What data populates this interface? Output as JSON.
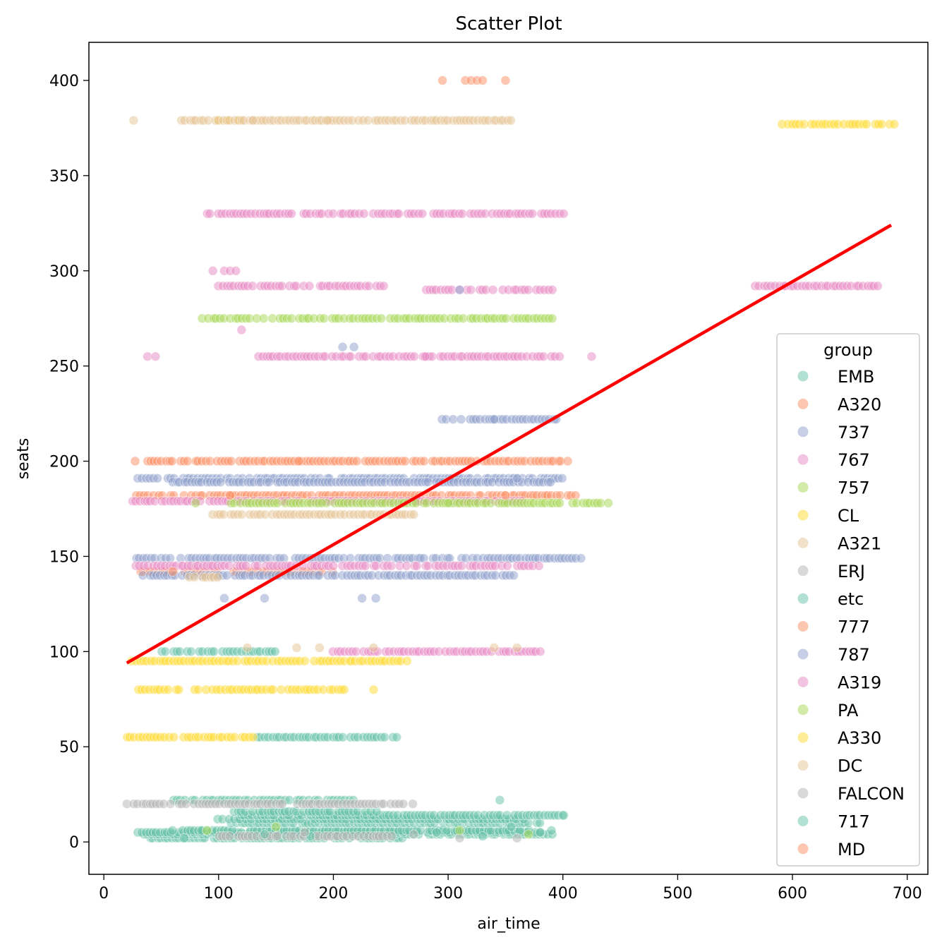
{
  "chart_data": {
    "type": "scatter",
    "title": "Scatter Plot",
    "xlabel": "air_time",
    "ylabel": "seats",
    "xlim": [
      -13,
      718
    ],
    "ylim": [
      -17,
      420
    ],
    "xticks": [
      0,
      100,
      200,
      300,
      400,
      500,
      600,
      700
    ],
    "yticks": [
      0,
      50,
      100,
      150,
      200,
      250,
      300,
      350,
      400
    ],
    "grid": false,
    "legend": {
      "title": "group",
      "placement": "lower-right"
    },
    "point_opacity": 0.5,
    "series": [
      {
        "name": "EMB",
        "color": "#66c2a5",
        "segments": [
          {
            "seats": 2,
            "x_from": 40,
            "x_to": 260
          },
          {
            "seats": 4,
            "x_from": 35,
            "x_to": 390
          },
          {
            "seats": 5,
            "x_from": 30,
            "x_to": 380
          },
          {
            "seats": 6,
            "x_from": 60,
            "x_to": 370
          },
          {
            "seats": 10,
            "x_from": 110,
            "x_to": 380
          },
          {
            "seats": 12,
            "x_from": 100,
            "x_to": 370
          },
          {
            "seats": 14,
            "x_from": 120,
            "x_to": 400
          },
          {
            "seats": 16,
            "x_from": 110,
            "x_to": 240
          },
          {
            "seats": 22,
            "x_from": 60,
            "x_to": 220
          },
          {
            "seats": 55,
            "x_from": 130,
            "x_to": 255
          },
          {
            "seats": 100,
            "x_from": 50,
            "x_to": 150
          }
        ],
        "points": [
          [
            345,
            22
          ],
          [
            400,
            14
          ],
          [
            380,
            5
          ]
        ]
      },
      {
        "name": "A320",
        "color": "#fc8d62",
        "segments": [
          {
            "seats": 200,
            "x_from": 28,
            "x_to": 405
          },
          {
            "seats": 182,
            "x_from": 28,
            "x_to": 410
          },
          {
            "seats": 142,
            "x_from": 28,
            "x_to": 200
          }
        ],
        "points": [
          [
            295,
            400
          ],
          [
            315,
            400
          ],
          [
            320,
            400
          ],
          [
            325,
            400
          ],
          [
            350,
            400
          ]
        ]
      },
      {
        "name": "737",
        "color": "#8da0cb",
        "segments": [
          {
            "seats": 222,
            "x_from": 295,
            "x_to": 395
          },
          {
            "seats": 191,
            "x_from": 30,
            "x_to": 400
          },
          {
            "seats": 189,
            "x_from": 60,
            "x_to": 390
          },
          {
            "seats": 149,
            "x_from": 28,
            "x_to": 415
          },
          {
            "seats": 140,
            "x_from": 30,
            "x_to": 360
          }
        ],
        "points": [
          [
            105,
            128
          ],
          [
            140,
            128
          ],
          [
            225,
            128
          ],
          [
            237,
            128
          ],
          [
            208,
            260
          ],
          [
            218,
            260
          ]
        ]
      },
      {
        "name": "767",
        "color": "#e78ac3",
        "segments": [
          {
            "seats": 330,
            "x_from": 90,
            "x_to": 400
          },
          {
            "seats": 292,
            "x_from": 100,
            "x_to": 250
          },
          {
            "seats": 290,
            "x_from": 280,
            "x_to": 390
          },
          {
            "seats": 255,
            "x_from": 135,
            "x_to": 400
          },
          {
            "seats": 179,
            "x_from": 22,
            "x_to": 370
          },
          {
            "seats": 100,
            "x_from": 200,
            "x_to": 380
          }
        ],
        "points": [
          [
            95,
            300
          ],
          [
            105,
            300
          ],
          [
            110,
            300
          ],
          [
            115,
            300
          ],
          [
            120,
            269
          ],
          [
            280,
            255
          ],
          [
            425,
            255
          ],
          [
            38,
            255
          ],
          [
            45,
            255
          ]
        ]
      },
      {
        "name": "757",
        "color": "#a6d854",
        "segments": [
          {
            "seats": 275,
            "x_from": 85,
            "x_to": 390
          },
          {
            "seats": 178,
            "x_from": 110,
            "x_to": 440
          }
        ],
        "points": [
          [
            80,
            178
          ],
          [
            190,
            178
          ],
          [
            300,
            178
          ]
        ]
      },
      {
        "name": "CL",
        "color": "#ffd92f",
        "segments": [
          {
            "seats": 95,
            "x_from": 25,
            "x_to": 265
          },
          {
            "seats": 80,
            "x_from": 30,
            "x_to": 210
          },
          {
            "seats": 55,
            "x_from": 20,
            "x_to": 130
          }
        ],
        "points": [
          [
            235,
            80
          ],
          [
            100,
            379
          ],
          [
            108,
            379
          ],
          [
            118,
            379
          ]
        ]
      },
      {
        "name": "A321",
        "color": "#e5c494",
        "segments": [
          {
            "seats": 379,
            "x_from": 68,
            "x_to": 355
          },
          {
            "seats": 172,
            "x_from": 95,
            "x_to": 270
          },
          {
            "seats": 139,
            "x_from": 75,
            "x_to": 100
          }
        ],
        "points": [
          [
            26,
            379
          ],
          [
            125,
            102
          ],
          [
            168,
            102
          ],
          [
            188,
            102
          ],
          [
            235,
            102
          ],
          [
            340,
            102
          ],
          [
            360,
            102
          ]
        ]
      },
      {
        "name": "ERJ",
        "color": "#b3b3b3",
        "segments": [
          {
            "seats": 20,
            "x_from": 20,
            "x_to": 270
          },
          {
            "seats": 3,
            "x_from": 100,
            "x_to": 250
          }
        ],
        "points": [
          [
            310,
            2
          ],
          [
            360,
            2
          ]
        ]
      },
      {
        "name": "etc",
        "color": "#66c2a5",
        "segments": [],
        "points": [
          [
            70,
            2
          ],
          [
            85,
            6
          ],
          [
            140,
            4
          ],
          [
            180,
            3
          ]
        ]
      },
      {
        "name": "777",
        "color": "#fc8d62",
        "segments": [],
        "points": [
          [
            330,
            400
          ],
          [
            320,
            200
          ],
          [
            350,
            182
          ]
        ]
      },
      {
        "name": "787",
        "color": "#8da0cb",
        "segments": [],
        "points": [
          [
            310,
            290
          ],
          [
            340,
            222
          ],
          [
            360,
            191
          ]
        ]
      },
      {
        "name": "A319",
        "color": "#e78ac3",
        "segments": [
          {
            "seats": 145,
            "x_from": 28,
            "x_to": 380
          }
        ],
        "points": []
      },
      {
        "name": "PA",
        "color": "#a6d854",
        "segments": [],
        "points": [
          [
            90,
            6
          ],
          [
            150,
            8
          ],
          [
            310,
            6
          ],
          [
            370,
            4
          ]
        ]
      },
      {
        "name": "A330",
        "color": "#ffd92f",
        "segments": [
          {
            "seats": 377,
            "x_from": 590,
            "x_to": 688
          }
        ],
        "points": []
      },
      {
        "name": "DC",
        "color": "#e5c494",
        "segments": [],
        "points": [
          [
            130,
            379
          ],
          [
            195,
            379
          ]
        ]
      },
      {
        "name": "FALCON",
        "color": "#b3b3b3",
        "segments": [],
        "points": [
          [
            175,
            5
          ],
          [
            270,
            4
          ]
        ]
      },
      {
        "name": "717",
        "color": "#66c2a5",
        "segments": [],
        "points": [
          [
            290,
            5
          ],
          [
            330,
            3
          ],
          [
            355,
            8
          ],
          [
            390,
            6
          ]
        ]
      },
      {
        "name": "MD",
        "color": "#fc8d62",
        "segments": [],
        "points": [
          [
            60,
            142
          ],
          [
            110,
            182
          ],
          [
            170,
            200
          ]
        ]
      }
    ],
    "extra_series_points": [
      {
        "group": "767",
        "seats": 292,
        "x_from": 568,
        "x_to": 675
      }
    ],
    "regression_line": {
      "color": "#ff0000",
      "x": [
        20,
        686
      ],
      "y": [
        94,
        324
      ]
    }
  }
}
